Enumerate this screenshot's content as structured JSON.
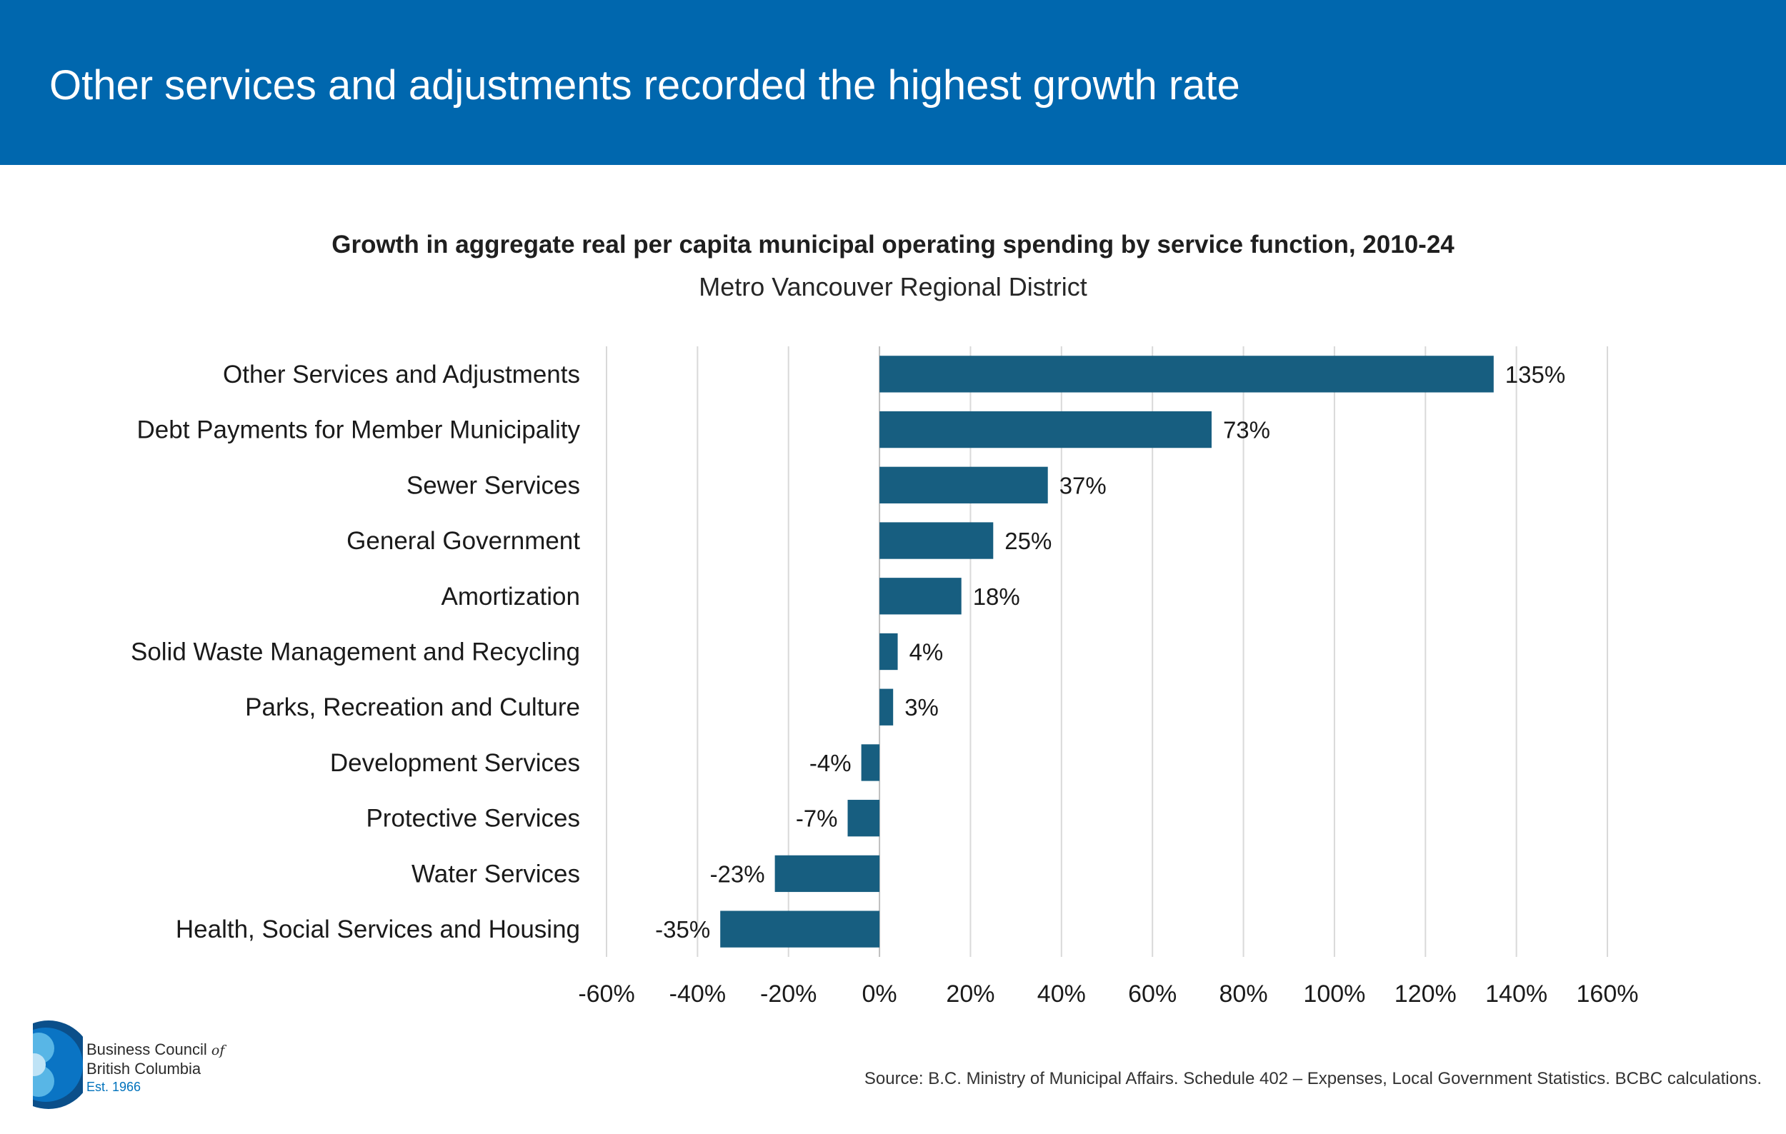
{
  "header": {
    "title": "Other services and adjustments recorded the highest growth rate"
  },
  "chart_data": {
    "type": "bar",
    "orientation": "horizontal",
    "title": "Growth in aggregate real per capita municipal operating spending by service function, 2010-24",
    "subtitle": "Metro Vancouver Regional District",
    "categories": [
      "Other Services and Adjustments",
      "Debt Payments for Member Municipality",
      "Sewer Services",
      "General Government",
      "Amortization",
      "Solid Waste Management and Recycling",
      "Parks, Recreation and Culture",
      "Development Services",
      "Protective Services",
      "Water Services",
      "Health, Social Services and Housing"
    ],
    "values": [
      135,
      73,
      37,
      25,
      18,
      4,
      3,
      -4,
      -7,
      -23,
      -35
    ],
    "data_labels": [
      "135%",
      "73%",
      "37%",
      "25%",
      "18%",
      "4%",
      "3%",
      "-4%",
      "-7%",
      "-23%",
      "-35%"
    ],
    "xlim": [
      -60,
      160
    ],
    "x_ticks": [
      -60,
      -40,
      -20,
      0,
      20,
      40,
      60,
      80,
      100,
      120,
      140,
      160
    ],
    "x_tick_labels": [
      "-60%",
      "-40%",
      "-20%",
      "0%",
      "20%",
      "40%",
      "60%",
      "80%",
      "100%",
      "120%",
      "140%",
      "160%"
    ],
    "xlabel": "",
    "ylabel": "",
    "grid": "vertical",
    "bar_color": "#175e80"
  },
  "logo": {
    "line1": "Business Council",
    "line1_suffix": "of",
    "line2": "British Columbia",
    "line3": "Est. 1966"
  },
  "source": "Source: B.C. Ministry of Municipal Affairs. Schedule 402 – Expenses, Local Government Statistics. BCBC calculations.",
  "colors": {
    "header_bg": "#0067ae",
    "bar": "#175e80",
    "grid": "#d9d9d9",
    "logo_blue": "#0072bc"
  }
}
